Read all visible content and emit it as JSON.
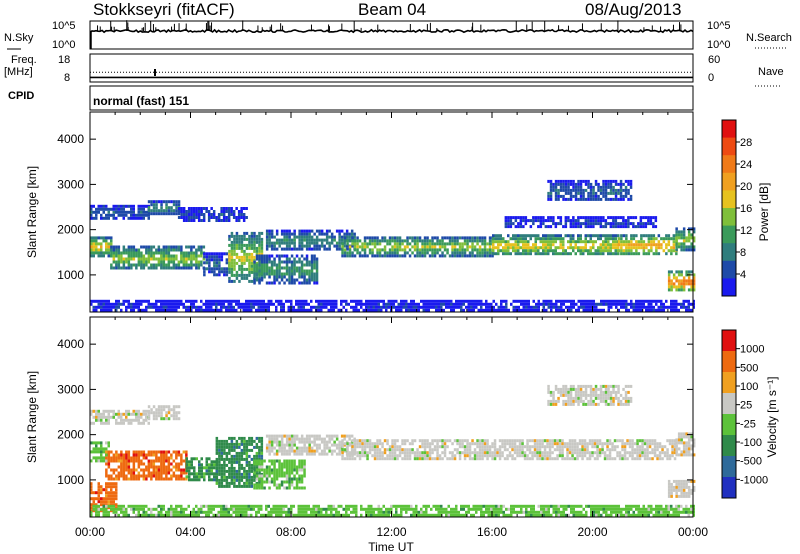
{
  "header": {
    "station": "Stokkseyri (fitACF)",
    "beam": "Beam 04",
    "date": "08/Aug/2013"
  },
  "nsky_panel": {
    "left_label": "N.Sky",
    "left_ticks": [
      "10^5",
      "10^0"
    ],
    "right_label": "N.Search",
    "right_ticks": [
      "10^5",
      "10^0"
    ]
  },
  "freq_panel": {
    "left_label_1": "Freq.",
    "left_label_2": "[MHz]",
    "left_ticks": [
      "18",
      "8"
    ],
    "right_label": "Nave",
    "right_ticks": [
      "60",
      "0"
    ],
    "freq_value_mhz": 10,
    "nave_value": 29
  },
  "cpid": {
    "label": "CPID",
    "text": "normal (fast) 151"
  },
  "chart_data": [
    {
      "type": "heatmap",
      "name": "Power",
      "xlabel": "Time UT",
      "ylabel": "Slant Range [km]",
      "x_ticks": [
        "00:00",
        "04:00",
        "08:00",
        "12:00",
        "16:00",
        "20:00",
        "00:00"
      ],
      "x_range_hours": [
        0,
        24
      ],
      "y_ticks": [
        1000,
        2000,
        3000,
        4000
      ],
      "ylim": [
        180,
        4600
      ],
      "colorbar": {
        "label": "Power [dB]",
        "ticks": [
          "28",
          "24",
          "20",
          "16",
          "12",
          "8",
          "4"
        ],
        "range": [
          0,
          30
        ],
        "colors": [
          "#1a1aee",
          "#1e4aa8",
          "#2f7d7d",
          "#3a9a5a",
          "#7fbf3a",
          "#e6c21f",
          "#f0a020",
          "#f07a18",
          "#ee4a12",
          "#e01010"
        ]
      },
      "echo_regions": [
        {
          "t0": 0.0,
          "t1": 2.3,
          "r0": 2250,
          "r1": 2550,
          "level": 0.18
        },
        {
          "t0": 2.3,
          "t1": 3.5,
          "r0": 2350,
          "r1": 2650,
          "level": 0.3
        },
        {
          "t0": 3.5,
          "t1": 6.2,
          "r0": 2200,
          "r1": 2500,
          "level": 0.16
        },
        {
          "t0": 0.0,
          "t1": 0.8,
          "r0": 1450,
          "r1": 1850,
          "level": 0.6
        },
        {
          "t0": 0.8,
          "t1": 4.5,
          "r0": 1150,
          "r1": 1650,
          "level": 0.48
        },
        {
          "t0": 4.5,
          "t1": 5.5,
          "r0": 1000,
          "r1": 1500,
          "level": 0.22
        },
        {
          "t0": 5.5,
          "t1": 6.8,
          "r0": 850,
          "r1": 1950,
          "level": 0.52
        },
        {
          "t0": 6.5,
          "t1": 9.0,
          "r0": 850,
          "r1": 1450,
          "level": 0.35
        },
        {
          "t0": 7.0,
          "t1": 10.5,
          "r0": 1550,
          "r1": 2000,
          "level": 0.3
        },
        {
          "t0": 10.0,
          "t1": 16.0,
          "r0": 1450,
          "r1": 1850,
          "level": 0.5
        },
        {
          "t0": 16.0,
          "t1": 21.0,
          "r0": 1450,
          "r1": 1900,
          "level": 0.58
        },
        {
          "t0": 21.0,
          "t1": 23.3,
          "r0": 1450,
          "r1": 1900,
          "level": 0.66
        },
        {
          "t0": 23.3,
          "t1": 24.0,
          "r0": 1550,
          "r1": 2050,
          "level": 0.5
        },
        {
          "t0": 23.0,
          "t1": 24.0,
          "r0": 650,
          "r1": 1100,
          "level": 0.8
        },
        {
          "t0": 18.2,
          "t1": 21.5,
          "r0": 2650,
          "r1": 3100,
          "level": 0.2
        },
        {
          "t0": 16.5,
          "t1": 22.5,
          "r0": 2050,
          "r1": 2300,
          "level": 0.12
        },
        {
          "t0": 0.0,
          "t1": 24.0,
          "r0": 200,
          "r1": 450,
          "level": 0.08
        }
      ]
    },
    {
      "type": "heatmap",
      "name": "Velocity",
      "xlabel": "Time UT",
      "ylabel": "Slant Range [km]",
      "x_ticks": [
        "00:00",
        "04:00",
        "08:00",
        "12:00",
        "16:00",
        "20:00",
        "00:00"
      ],
      "x_range_hours": [
        0,
        24
      ],
      "y_ticks": [
        1000,
        2000,
        3000,
        4000
      ],
      "ylim": [
        180,
        4600
      ],
      "colorbar": {
        "label": "Velocity [m s⁻¹]",
        "ticks": [
          "1000",
          "500",
          "100",
          "25",
          "-25",
          "-100",
          "-500",
          "-1000"
        ],
        "colors": [
          "#2030c0",
          "#2e6a9a",
          "#2f8a4a",
          "#5cc23a",
          "#c8c8c4",
          "#f0a020",
          "#ee6a10",
          "#e01010"
        ]
      },
      "echo_regions": [
        {
          "t0": 0.0,
          "t1": 2.3,
          "r0": 2250,
          "r1": 2550,
          "cls": 4
        },
        {
          "t0": 2.3,
          "t1": 3.5,
          "r0": 2350,
          "r1": 2650,
          "cls": 4
        },
        {
          "t0": 0.0,
          "t1": 0.7,
          "r0": 1450,
          "r1": 1850,
          "cls": 3
        },
        {
          "t0": 0.6,
          "t1": 3.8,
          "r0": 1050,
          "r1": 1650,
          "cls": 6
        },
        {
          "t0": 3.8,
          "t1": 5.0,
          "r0": 1000,
          "r1": 1500,
          "cls": 2
        },
        {
          "t0": 5.0,
          "t1": 6.8,
          "r0": 850,
          "r1": 1950,
          "cls": 2
        },
        {
          "t0": 6.5,
          "t1": 8.5,
          "r0": 850,
          "r1": 1450,
          "cls": 3
        },
        {
          "t0": 7.0,
          "t1": 10.5,
          "r0": 1550,
          "r1": 2000,
          "cls": 4
        },
        {
          "t0": 10.0,
          "t1": 23.3,
          "r0": 1450,
          "r1": 1900,
          "cls": 4
        },
        {
          "t0": 23.3,
          "t1": 24.0,
          "r0": 1550,
          "r1": 2050,
          "cls": 4
        },
        {
          "t0": 23.0,
          "t1": 24.0,
          "r0": 650,
          "r1": 1000,
          "cls": 4
        },
        {
          "t0": 18.2,
          "t1": 21.5,
          "r0": 2650,
          "r1": 3100,
          "cls": 4
        },
        {
          "t0": 0.0,
          "t1": 1.0,
          "r0": 350,
          "r1": 950,
          "cls": 6
        },
        {
          "t0": 0.0,
          "t1": 24.0,
          "r0": 200,
          "r1": 450,
          "cls": 3
        }
      ]
    }
  ]
}
